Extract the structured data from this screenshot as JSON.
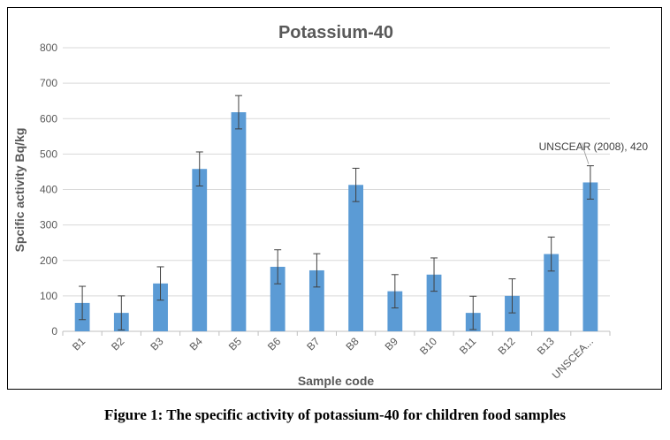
{
  "caption": "Figure 1: The specific activity of potassium-40 for children food samples",
  "chart_data": {
    "type": "bar",
    "title": "Potassium-40",
    "xlabel": "Sample code",
    "ylabel": "Spcific activity  Bq/kg",
    "ylim": [
      0,
      800
    ],
    "yticks": [
      0,
      100,
      200,
      300,
      400,
      500,
      600,
      700,
      800
    ],
    "grid": true,
    "bar_color": "#5B9BD5",
    "categories": [
      "B1",
      "B2",
      "B3",
      "B4",
      "B5",
      "B6",
      "B7",
      "B8",
      "B9",
      "B10",
      "B11",
      "B12",
      "B13",
      "UNSCEA..."
    ],
    "values": [
      80,
      52,
      135,
      458,
      618,
      182,
      172,
      413,
      113,
      160,
      52,
      100,
      218,
      420
    ],
    "error": [
      47,
      48,
      47,
      48,
      47,
      48,
      47,
      47,
      47,
      47,
      47,
      48,
      48,
      47
    ],
    "annotations": [
      {
        "category_index": 13,
        "text": "UNSCEAR (2008), 420"
      }
    ]
  }
}
